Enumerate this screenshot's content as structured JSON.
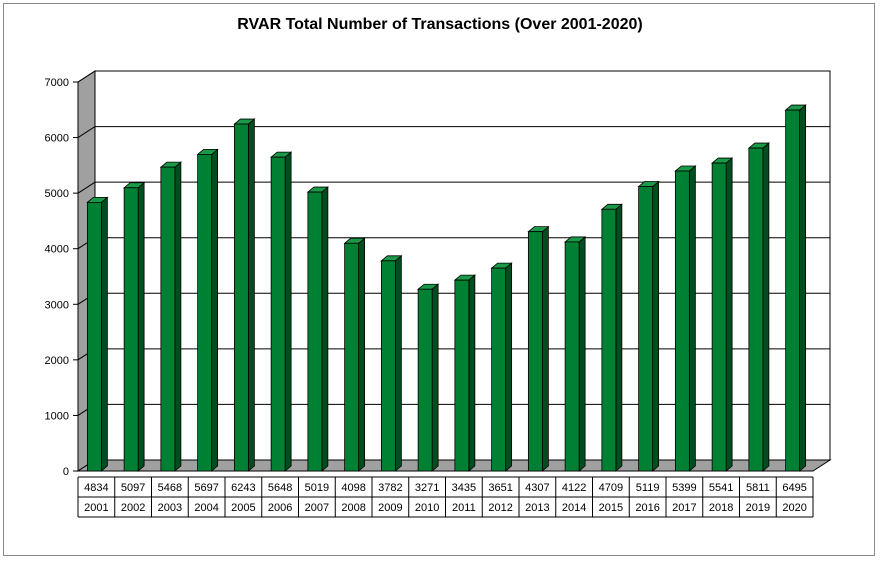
{
  "chart_data": {
    "type": "bar",
    "title": "RVAR Total Number of Transactions (Over 2001-2020)",
    "categories": [
      "2001",
      "2002",
      "2003",
      "2004",
      "2005",
      "2006",
      "2007",
      "2008",
      "2009",
      "2010",
      "2011",
      "2012",
      "2013",
      "2014",
      "2015",
      "2016",
      "2017",
      "2018",
      "2019",
      "2020"
    ],
    "values": [
      4834,
      5097,
      5468,
      5697,
      6243,
      5648,
      5019,
      4098,
      3782,
      3271,
      3435,
      3651,
      4307,
      4122,
      4709,
      5119,
      5399,
      5541,
      5811,
      6495
    ],
    "ylim": [
      0,
      7000
    ],
    "yticks": [
      0,
      1000,
      2000,
      3000,
      4000,
      5000,
      6000,
      7000
    ],
    "grid": true,
    "style": "3d",
    "data_table": true,
    "colors": {
      "bar_front": "#008033",
      "bar_side": "#004d1f",
      "bar_top": "#1a9a48",
      "wall": "#a0a0a0",
      "floor": "#a0a0a0"
    }
  }
}
